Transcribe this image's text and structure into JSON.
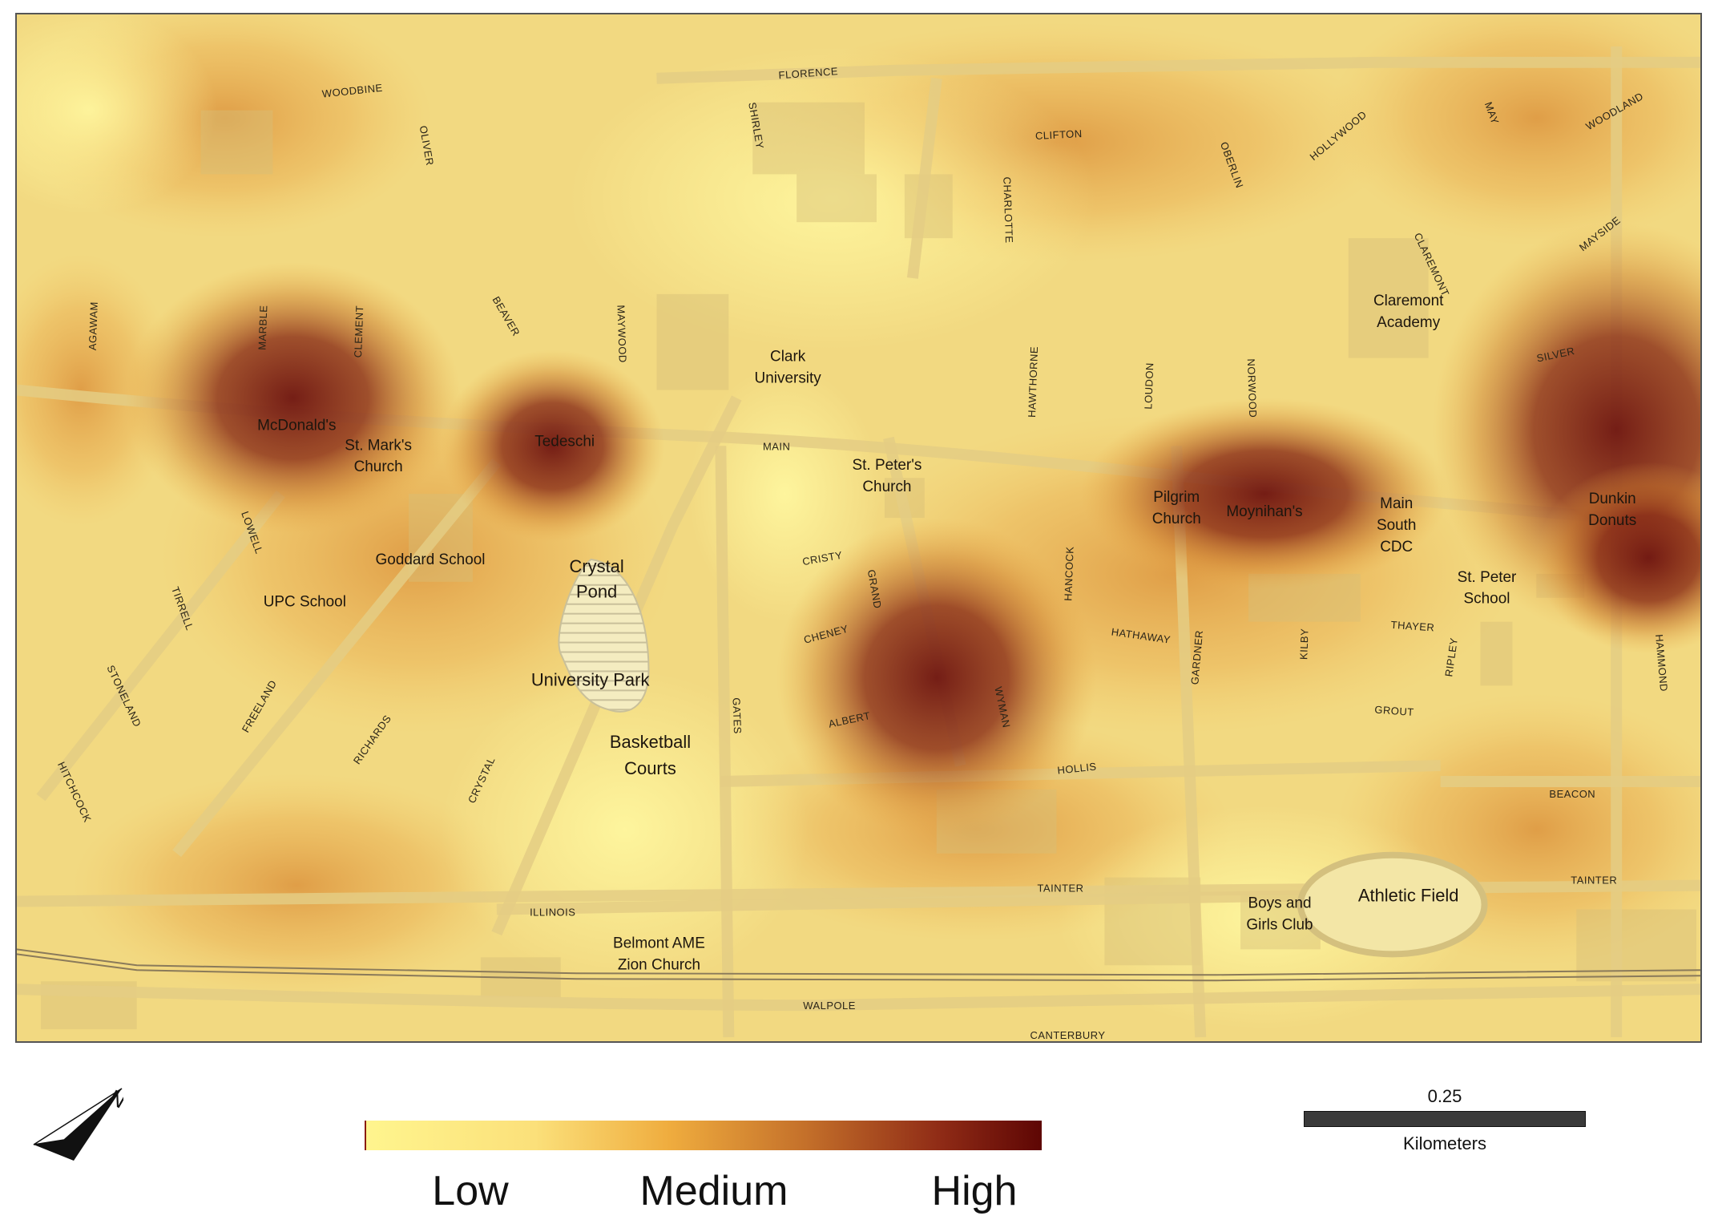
{
  "map": {
    "hotspots_high": [
      {
        "id": "mcdonalds-cluster"
      },
      {
        "id": "tedeschi"
      },
      {
        "id": "grand-wyman"
      },
      {
        "id": "moynihans"
      },
      {
        "id": "dunkin"
      }
    ],
    "streets": [
      "WOODBINE",
      "FLORENCE",
      "OLIVER",
      "SHIRLEY",
      "CLIFTON",
      "CHARLOTTE",
      "OBERLIN",
      "HOLLYWOOD",
      "MAY",
      "WOODLAND",
      "MAYSIDE",
      "CLAREMONT",
      "AGAWAM",
      "MARBLE",
      "CLEMENT",
      "BEAVER",
      "MAYWOOD",
      "SILVER",
      "HAWTHORNE",
      "LOUDON",
      "NORWOOD",
      "MAIN",
      "LOWELL",
      "CRISTY",
      "GRAND",
      "HANCOCK",
      "TIRRELL",
      "CHENEY",
      "HATHAWAY",
      "GARDNER",
      "KILBY",
      "THAYER",
      "RIPLEY",
      "HAMMOND",
      "STONELAND",
      "FREELAND",
      "GATES",
      "WYMAN",
      "ALBERT",
      "GROUT",
      "RICHARDS",
      "CRYSTAL",
      "HITCHCOCK",
      "HOLLIS",
      "BEACON",
      "TAINTER",
      "TAINTER",
      "ILLINOIS",
      "WALPOLE",
      "CANTERBURY"
    ],
    "places": [
      "Clark\nUniversity",
      "Claremont\nAcademy",
      "McDonald's",
      "St. Mark's\nChurch",
      "Tedeschi",
      "St. Peter's\nChurch",
      "Pilgrim\nChurch",
      "Moynihan's",
      "Main\nSouth\nCDC",
      "Dunkin\nDonuts",
      "Goddard School",
      "Crystal\nPond",
      "UPC School",
      "St. Peter\nSchool",
      "University Park",
      "Basketball\nCourts",
      "Athletic Field",
      "Boys and\nGirls Club",
      "Belmont AME\nZion Church"
    ]
  },
  "legend": {
    "low": "Low",
    "medium": "Medium",
    "high": "High",
    "ramp_colors": [
      "#fff58e",
      "#efac3e",
      "#5e0604"
    ]
  },
  "scale": {
    "value": "0.25",
    "unit": "Kilometers"
  },
  "north_arrow": {
    "letter": "N",
    "icon": "north-arrow-icon"
  }
}
